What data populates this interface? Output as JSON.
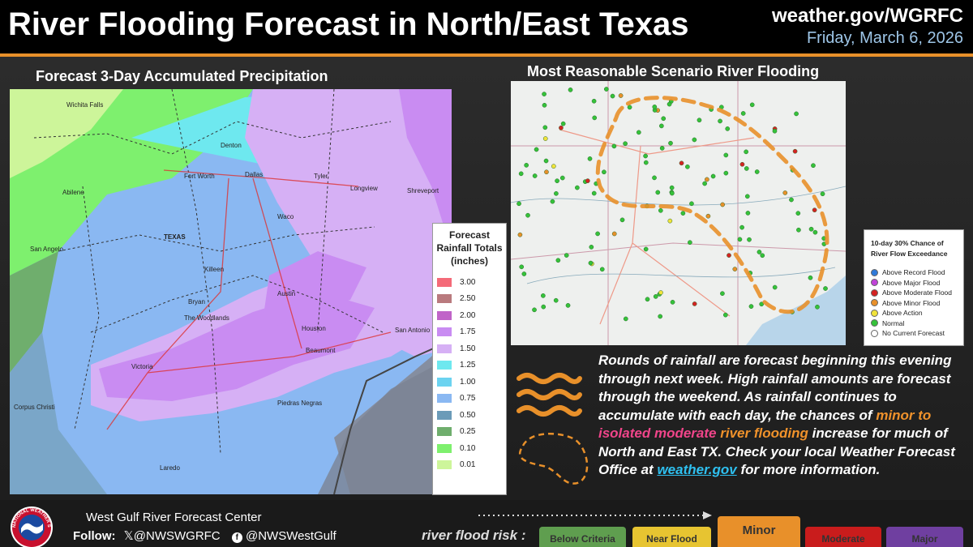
{
  "header": {
    "title": "River Flooding Forecast in North/East Texas",
    "site": "weather.gov/WGRFC",
    "date": "Friday, March 6, 2026"
  },
  "left_map": {
    "title": "Forecast 3-Day Accumulated Precipitation",
    "cities": [
      "Wichita Falls",
      "Denton",
      "Fort Worth",
      "Dallas",
      "Tyler",
      "Longview",
      "Shreveport",
      "Abilene",
      "San Angelo",
      "TEXAS",
      "Waco",
      "Killeen",
      "Bryan",
      "Austin",
      "The Woodlands",
      "Houston",
      "Beaumont",
      "San Antonio",
      "Victoria",
      "Piedras Negras",
      "Corpus Christi",
      "Laredo"
    ],
    "legend": {
      "title": "Forecast Rainfall Totals (inches)",
      "items": [
        {
          "label": "3.00",
          "color": "#f46a78"
        },
        {
          "label": "2.50",
          "color": "#b97a7e"
        },
        {
          "label": "2.00",
          "color": "#c064c8"
        },
        {
          "label": "1.75",
          "color": "#c98cf2"
        },
        {
          "label": "1.50",
          "color": "#d6b0f5"
        },
        {
          "label": "1.25",
          "color": "#6ee8ef"
        },
        {
          "label": "1.00",
          "color": "#6cd3f0"
        },
        {
          "label": "0.75",
          "color": "#8ab8f2"
        },
        {
          "label": "0.50",
          "color": "#6b9bb8"
        },
        {
          "label": "0.25",
          "color": "#6fae6d"
        },
        {
          "label": "0.10",
          "color": "#7ef06e"
        },
        {
          "label": "0.01",
          "color": "#cdf59a"
        }
      ]
    }
  },
  "right_map": {
    "title": "Most Reasonable Scenario River Flooding",
    "legend": {
      "title": "10-day 30% Chance of River Flow Exceedance",
      "items": [
        {
          "label": "Above Record Flood",
          "color": "#2f7ad9"
        },
        {
          "label": "Above Major Flood",
          "color": "#c043d8"
        },
        {
          "label": "Above Moderate Flood",
          "color": "#d42222"
        },
        {
          "label": "Above Minor Flood",
          "color": "#e8902a"
        },
        {
          "label": "Above Action",
          "color": "#f1e33a"
        },
        {
          "label": "Normal",
          "color": "#35c23a"
        },
        {
          "label": "No Current Forecast",
          "color": "#ffffff"
        }
      ]
    }
  },
  "description": [
    "Rounds of rainfall are forecast beginning this evening through next week. High rainfall amounts are forecast through the weekend. As rainfall continues to accumulate with each day, the chances of",
    "minor to",
    "isolated moderate",
    "river flooding",
    "increase for much of North and East TX. Check your local Weather Forecast Office at",
    "weather.gov",
    "for more information."
  ],
  "footer": {
    "office": "West Gulf River Forecast Center",
    "follow": "Follow:",
    "twitter": "@NWSWGRFC",
    "facebook": "@NWSWestGulf",
    "logo_text": "NATIONAL WEATHER SERVICE"
  },
  "risk": {
    "label": "river flood risk :",
    "levels": [
      {
        "label": "Below Criteria",
        "color": "#5f9e4f"
      },
      {
        "label": "Near Flood",
        "color": "#e7c431"
      },
      {
        "label": "Minor",
        "color": "#e8902a"
      },
      {
        "label": "Moderate",
        "color": "#c91c1c"
      },
      {
        "label": "Major",
        "color": "#6f3fa0"
      }
    ]
  }
}
